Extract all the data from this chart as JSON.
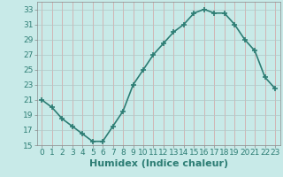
{
  "x": [
    0,
    1,
    2,
    3,
    4,
    5,
    6,
    7,
    8,
    9,
    10,
    11,
    12,
    13,
    14,
    15,
    16,
    17,
    18,
    19,
    20,
    21,
    22,
    23
  ],
  "y": [
    21,
    20,
    18.5,
    17.5,
    16.5,
    15.5,
    15.5,
    17.5,
    19.5,
    23,
    25,
    27,
    28.5,
    30,
    31,
    32.5,
    33,
    32.5,
    32.5,
    31,
    29,
    27.5,
    24,
    22.5
  ],
  "line_color": "#2d7d74",
  "marker": "+",
  "bg_color": "#c8eae8",
  "grid_color_v": "#d4a0a0",
  "grid_color_h": "#b0c8c8",
  "xlabel": "Humidex (Indice chaleur)",
  "xlim": [
    -0.5,
    23.5
  ],
  "ylim": [
    15,
    34
  ],
  "yticks": [
    15,
    17,
    19,
    21,
    23,
    25,
    27,
    29,
    31,
    33
  ],
  "xticks": [
    0,
    1,
    2,
    3,
    4,
    5,
    6,
    7,
    8,
    9,
    10,
    11,
    12,
    13,
    14,
    15,
    16,
    17,
    18,
    19,
    20,
    21,
    22,
    23
  ],
  "xlabel_fontsize": 8,
  "tick_fontsize": 6.5,
  "linewidth": 1.2,
  "markersize": 4,
  "markeredgewidth": 1.2
}
